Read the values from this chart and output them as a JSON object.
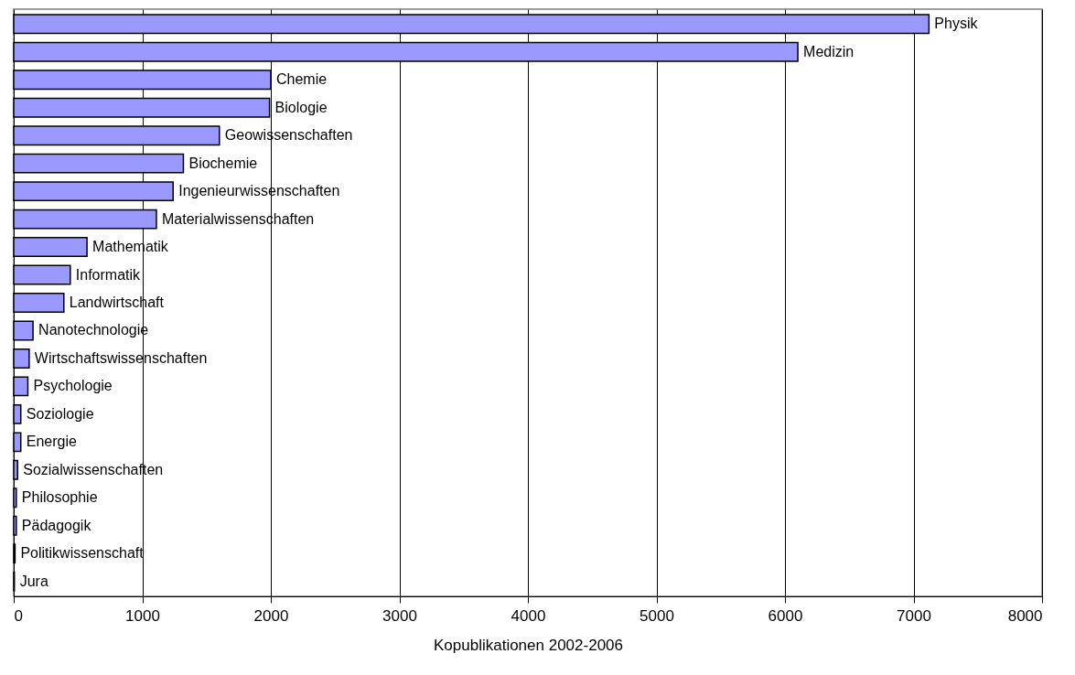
{
  "chart_data": {
    "type": "bar",
    "orientation": "horizontal",
    "xlabel": "Kopublikationen 2002-2006",
    "categories": [
      "Physik",
      "Medizin",
      "Chemie",
      "Biologie",
      "Geowissenschaften",
      "Biochemie",
      "Ingenieurwissenschaften",
      "Materialwissenschaften",
      "Mathematik",
      "Informatik",
      "Landwirtschaft",
      "Nanotechnologie",
      "Wirtschaftswissenschaften",
      "Psychologie",
      "Soziologie",
      "Energie",
      "Sozialwissenschaften",
      "Philosophie",
      "Pädagogik",
      "Politikwissenschaft",
      "Jura"
    ],
    "values": [
      7120,
      6100,
      2000,
      1990,
      1600,
      1320,
      1240,
      1110,
      570,
      440,
      390,
      150,
      120,
      110,
      55,
      55,
      30,
      20,
      20,
      10,
      5
    ],
    "color": "#9999ff",
    "xlim": [
      0,
      8000
    ],
    "xticks": [
      0,
      1000,
      2000,
      3000,
      4000,
      5000,
      6000,
      7000,
      8000
    ],
    "grid": "x",
    "tick_labels": "x"
  }
}
